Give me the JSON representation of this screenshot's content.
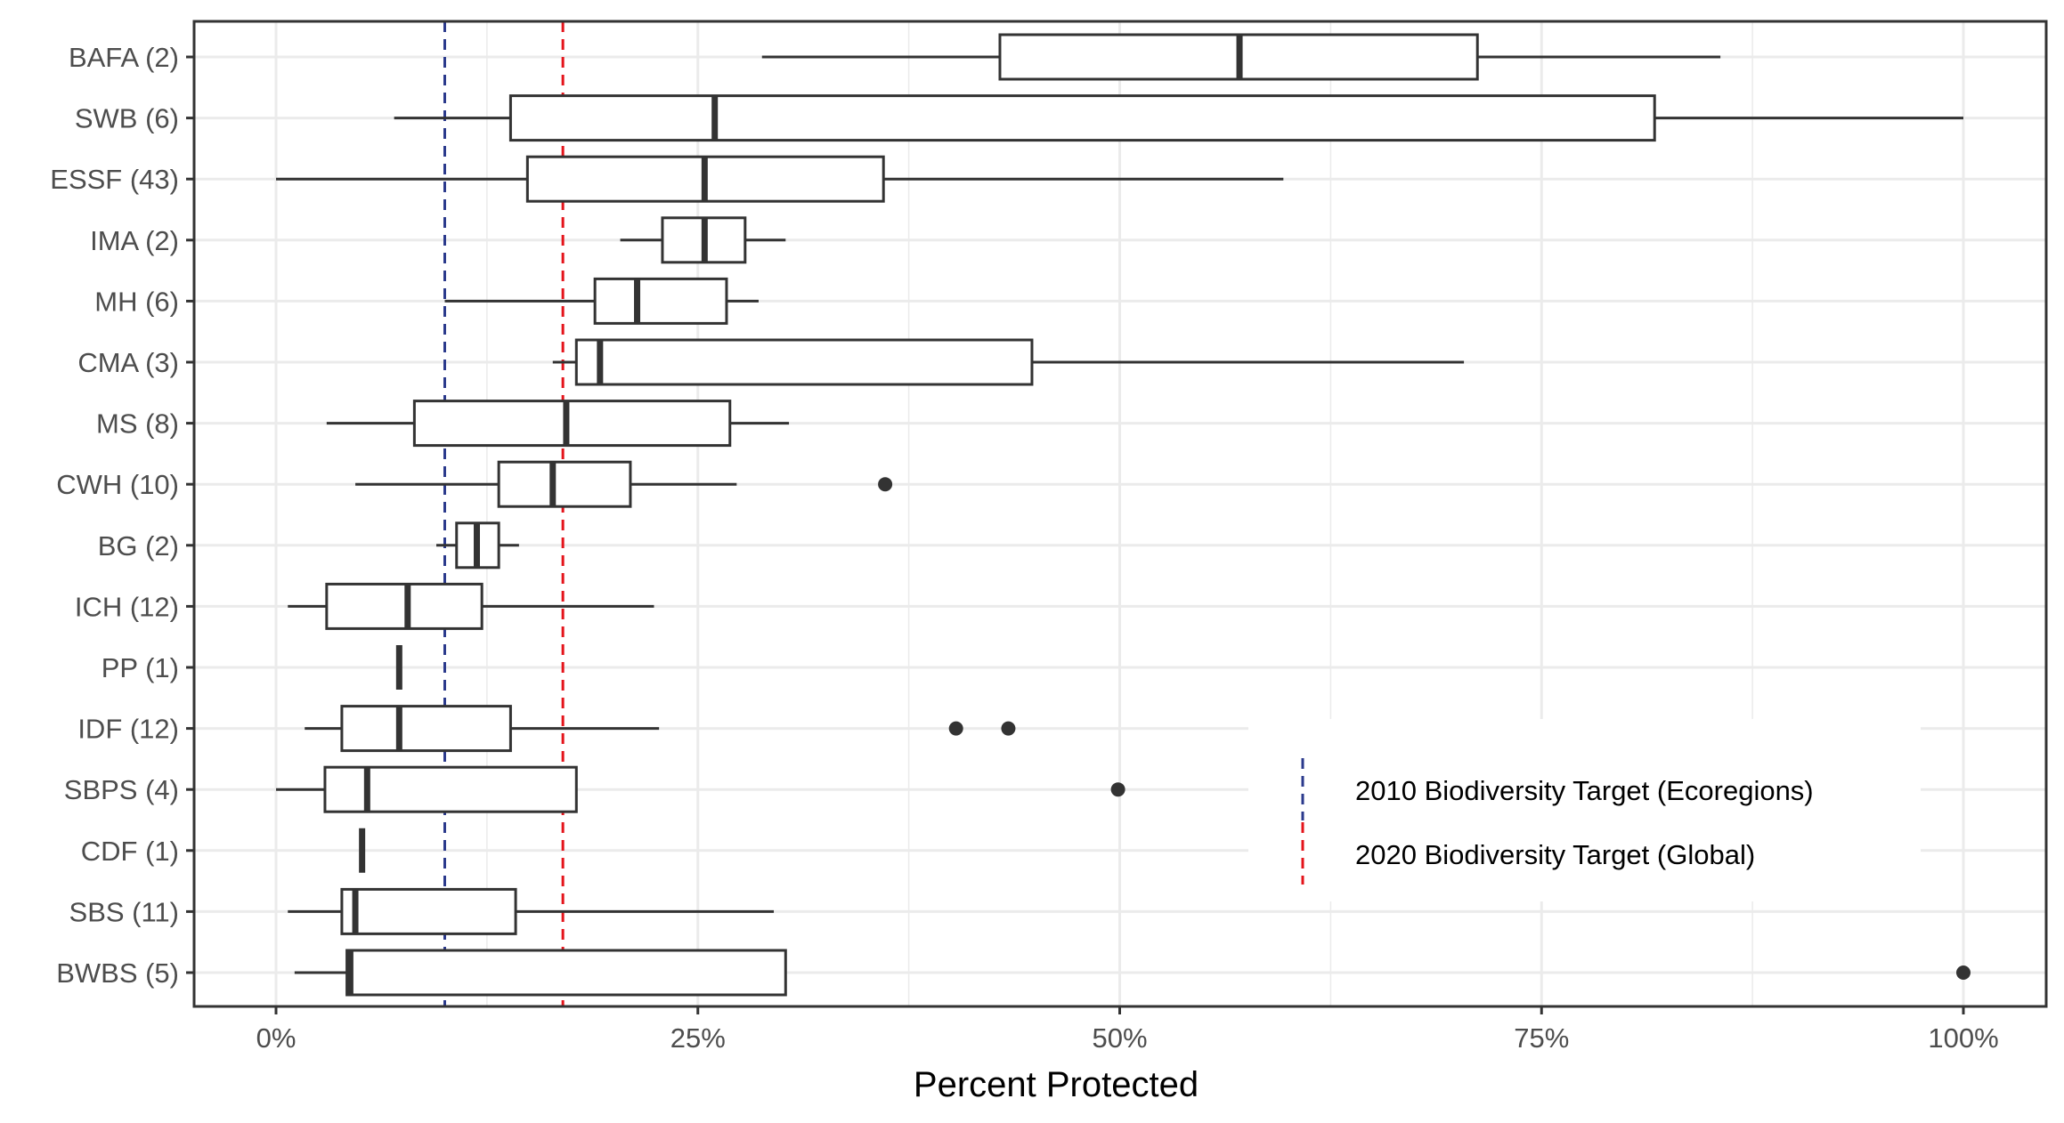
{
  "chart_data": {
    "type": "boxplot",
    "orientation": "horizontal",
    "title": "",
    "xlabel": "Percent Protected",
    "ylabel": "",
    "xlim": [
      -0.025,
      1.025
    ],
    "x_ticks": [
      0,
      0.25,
      0.5,
      0.75,
      1.0
    ],
    "x_tick_labels": [
      "0%",
      "25%",
      "50%",
      "75%",
      "100%"
    ],
    "grid": true,
    "categories": [
      "BAFA (2)",
      "SWB (6)",
      "ESSF (43)",
      "IMA (2)",
      "MH (6)",
      "CMA (3)",
      "MS (8)",
      "CWH (10)",
      "BG (2)",
      "ICH (12)",
      "PP (1)",
      "IDF (12)",
      "SBPS (4)",
      "CDF (1)",
      "SBS (11)",
      "BWBS (5)"
    ],
    "boxes": [
      {
        "label": "BAFA (2)",
        "whisker_low": 0.288,
        "q1": 0.429,
        "median": 0.571,
        "q3": 0.712,
        "whisker_high": 0.856,
        "outliers": []
      },
      {
        "label": "SWB (6)",
        "whisker_low": 0.07,
        "q1": 0.139,
        "median": 0.26,
        "q3": 0.817,
        "whisker_high": 1.0,
        "outliers": []
      },
      {
        "label": "ESSF (43)",
        "whisker_low": 0.0,
        "q1": 0.149,
        "median": 0.254,
        "q3": 0.36,
        "whisker_high": 0.597,
        "outliers": []
      },
      {
        "label": "IMA (2)",
        "whisker_low": 0.204,
        "q1": 0.229,
        "median": 0.254,
        "q3": 0.278,
        "whisker_high": 0.302,
        "outliers": []
      },
      {
        "label": "MH (6)",
        "whisker_low": 0.1,
        "q1": 0.189,
        "median": 0.214,
        "q3": 0.267,
        "whisker_high": 0.286,
        "outliers": []
      },
      {
        "label": "CMA (3)",
        "whisker_low": 0.164,
        "q1": 0.178,
        "median": 0.192,
        "q3": 0.448,
        "whisker_high": 0.704,
        "outliers": []
      },
      {
        "label": "MS (8)",
        "whisker_low": 0.03,
        "q1": 0.082,
        "median": 0.172,
        "q3": 0.269,
        "whisker_high": 0.304,
        "outliers": []
      },
      {
        "label": "CWH (10)",
        "whisker_low": 0.047,
        "q1": 0.132,
        "median": 0.164,
        "q3": 0.21,
        "whisker_high": 0.273,
        "outliers": [
          0.361
        ]
      },
      {
        "label": "BG (2)",
        "whisker_low": 0.095,
        "q1": 0.107,
        "median": 0.119,
        "q3": 0.132,
        "whisker_high": 0.144,
        "outliers": []
      },
      {
        "label": "ICH (12)",
        "whisker_low": 0.007,
        "q1": 0.03,
        "median": 0.078,
        "q3": 0.122,
        "whisker_high": 0.224,
        "outliers": []
      },
      {
        "label": "PP (1)",
        "whisker_low": 0.073,
        "q1": 0.073,
        "median": 0.073,
        "q3": 0.073,
        "whisker_high": 0.073,
        "outliers": []
      },
      {
        "label": "IDF (12)",
        "whisker_low": 0.017,
        "q1": 0.039,
        "median": 0.073,
        "q3": 0.139,
        "whisker_high": 0.227,
        "outliers": [
          0.403,
          0.434
        ]
      },
      {
        "label": "SBPS (4)",
        "whisker_low": 0.0,
        "q1": 0.029,
        "median": 0.054,
        "q3": 0.178,
        "whisker_high": 0.178,
        "outliers": [
          0.499
        ]
      },
      {
        "label": "CDF (1)",
        "whisker_low": 0.051,
        "q1": 0.051,
        "median": 0.051,
        "q3": 0.051,
        "whisker_high": 0.051,
        "outliers": []
      },
      {
        "label": "SBS (11)",
        "whisker_low": 0.007,
        "q1": 0.039,
        "median": 0.047,
        "q3": 0.142,
        "whisker_high": 0.295,
        "outliers": []
      },
      {
        "label": "BWBS (5)",
        "whisker_low": 0.011,
        "q1": 0.042,
        "median": 0.044,
        "q3": 0.302,
        "whisker_high": 0.302,
        "outliers": [
          1.0
        ]
      }
    ],
    "reference_lines": [
      {
        "name": "2010 Biodiversity Target (Ecoregions)",
        "value": 0.1,
        "color": "#2b3a8c",
        "style": "dashed"
      },
      {
        "name": "2020 Biodiversity Target (Global)",
        "value": 0.17,
        "color": "#e4141b",
        "style": "dashed"
      }
    ],
    "legend_position": "bottom-right-inside",
    "colors": {
      "box_stroke": "#333333",
      "grid": "#ebebeb",
      "panel_border": "#333333"
    }
  }
}
